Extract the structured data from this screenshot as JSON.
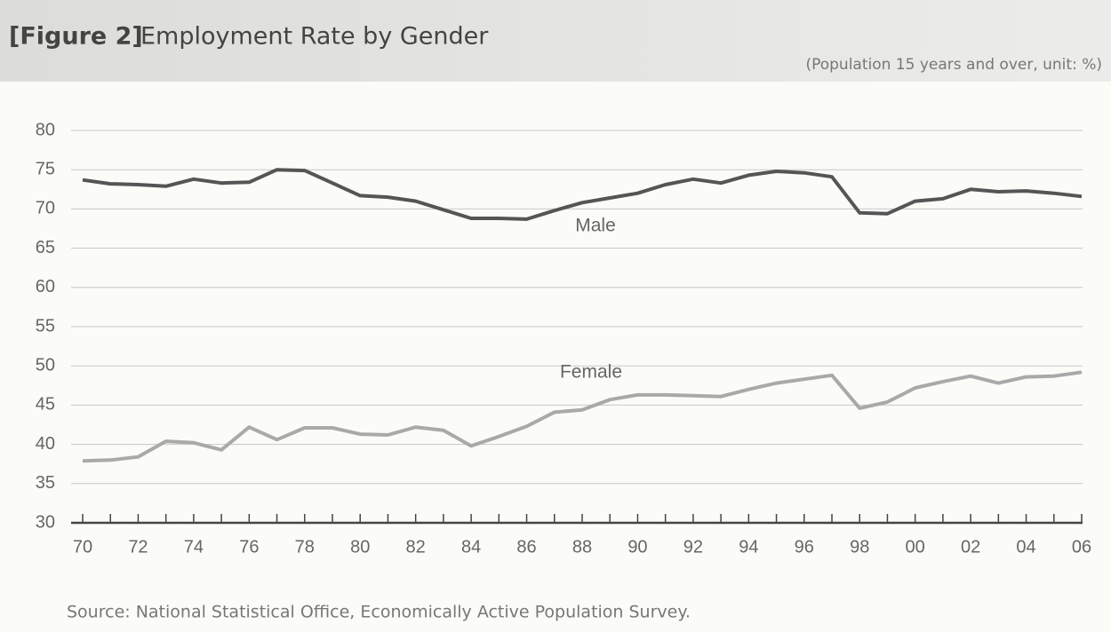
{
  "chart_data": {
    "type": "line",
    "figure_label": "[Figure 2]",
    "title": "Employment Rate by Gender",
    "subtitle": "(Population 15 years and over, unit: %)",
    "source": "Source: National Statistical Office, Economically Active Population Survey.",
    "categories": [
      "70",
      null,
      "72",
      null,
      "74",
      null,
      "76",
      null,
      "78",
      null,
      "80",
      null,
      "82",
      null,
      "84",
      null,
      "86",
      null,
      "88",
      null,
      "90",
      null,
      "92",
      null,
      "94",
      null,
      "96",
      null,
      "98",
      null,
      "00",
      null,
      "02",
      null,
      "04",
      null,
      "06"
    ],
    "series": [
      {
        "name": "Male",
        "color": "#555555",
        "values": [
          73.7,
          73.2,
          73.1,
          72.9,
          73.8,
          73.3,
          73.4,
          75.0,
          74.9,
          73.3,
          71.7,
          71.5,
          71.0,
          69.9,
          68.8,
          68.8,
          68.7,
          69.8,
          70.8,
          71.4,
          72.0,
          73.1,
          73.8,
          73.3,
          74.3,
          74.8,
          74.6,
          74.1,
          69.5,
          69.4,
          71.0,
          71.3,
          72.5,
          72.2,
          72.3,
          72.0,
          71.6
        ]
      },
      {
        "name": "Female",
        "color": "#a9a9a9",
        "values": [
          37.9,
          38.0,
          38.4,
          40.4,
          40.2,
          39.3,
          42.2,
          40.6,
          42.1,
          42.1,
          41.3,
          41.2,
          42.2,
          41.8,
          39.8,
          41.0,
          42.3,
          44.1,
          44.4,
          45.7,
          46.3,
          46.3,
          46.2,
          46.1,
          47.0,
          47.8,
          48.3,
          48.8,
          44.6,
          45.4,
          47.2,
          48.0,
          48.7,
          47.8,
          48.6,
          48.7,
          49.2
        ]
      }
    ],
    "ylim": [
      30,
      80
    ],
    "yticks": [
      30,
      35,
      40,
      45,
      50,
      55,
      60,
      65,
      70,
      75,
      80
    ],
    "grid": true
  }
}
